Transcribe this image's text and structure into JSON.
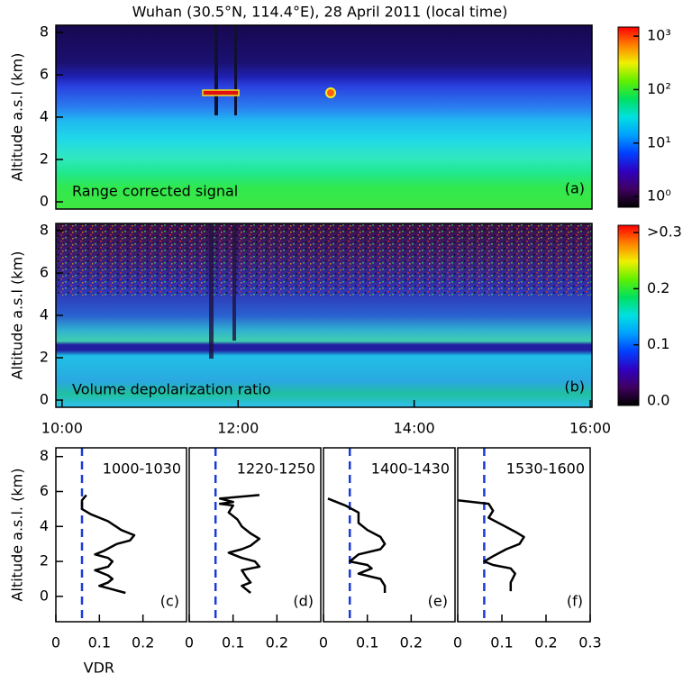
{
  "chart_data": [
    {
      "type": "heatmap",
      "title": "Wuhan (30.5°N, 114.4°E), 28 April 2011 (local time)",
      "ylabel": "Altitude a.s.l (km)",
      "annotation": "Range corrected signal",
      "panel_label": "(a)",
      "xlim": [
        9.93,
        16.02
      ],
      "ylim": [
        -0.34,
        8.34
      ],
      "yticks": [
        0,
        2,
        4,
        6,
        8
      ],
      "colorbar": {
        "scale": "log",
        "lim": [
          0.63,
          1480
        ],
        "ticks": [
          {
            "value": 1,
            "label": "10⁰"
          },
          {
            "value": 10,
            "label": "10¹"
          },
          {
            "value": 100,
            "label": "10²"
          },
          {
            "value": 1000,
            "label": "10³"
          }
        ]
      }
    },
    {
      "type": "heatmap",
      "ylabel": "Altitude a.s.l (km)",
      "annotation": "Volume depolarization ratio",
      "panel_label": "(b)",
      "xlim": [
        9.93,
        16.02
      ],
      "ylim": [
        -0.34,
        8.34
      ],
      "yticks": [
        0,
        2,
        4,
        6,
        8
      ],
      "xticks": [
        {
          "value": 10,
          "label": "10:00"
        },
        {
          "value": 12,
          "label": "12:00"
        },
        {
          "value": 14,
          "label": "14:00"
        },
        {
          "value": 16,
          "label": "16:00"
        }
      ],
      "colorbar": {
        "scale": "linear",
        "lim": [
          -0.008,
          0.313
        ],
        "ticks": [
          {
            "value": 0,
            "label": "0.0"
          },
          0.1,
          0.2,
          {
            "value": 0.3,
            "label": ">0.3"
          }
        ]
      }
    },
    {
      "type": "line",
      "title": "1000-1030",
      "panel_label": "(c)",
      "xlabel": "VDR",
      "ylabel": "Altitude a.s.l. (km)",
      "xlim": [
        0,
        0.3
      ],
      "ylim": [
        -1.45,
        8.5
      ],
      "xticks": [
        0,
        0.1,
        0.2
      ],
      "yticks": [
        0,
        2,
        4,
        6,
        8
      ],
      "reference_x": 0.06,
      "reference_color": "#1a3ad8",
      "color": "#000000",
      "x": [
        0.07,
        0.06,
        0.06,
        0.08,
        0.12,
        0.15,
        0.18,
        0.17,
        0.14,
        0.11,
        0.09,
        0.12,
        0.13,
        0.12,
        0.09,
        0.12,
        0.13,
        0.12,
        0.1,
        0.13,
        0.16
      ],
      "values": [
        5.8,
        5.5,
        5.0,
        4.7,
        4.3,
        3.8,
        3.5,
        3.2,
        3.0,
        2.6,
        2.4,
        2.2,
        2.0,
        1.7,
        1.5,
        1.2,
        1.0,
        0.8,
        0.6,
        0.4,
        0.2
      ]
    },
    {
      "type": "line",
      "title": "1220-1250",
      "panel_label": "(d)",
      "xlim": [
        0,
        0.3
      ],
      "ylim": [
        -1.45,
        8.5
      ],
      "xticks": [
        0,
        0.1,
        0.2
      ],
      "reference_x": 0.06,
      "reference_color": "#1a3ad8",
      "color": "#000000",
      "x": [
        0.16,
        0.07,
        0.1,
        0.07,
        0.1,
        0.09,
        0.11,
        0.12,
        0.14,
        0.16,
        0.14,
        0.12,
        0.09,
        0.12,
        0.15,
        0.16,
        0.12,
        0.13,
        0.14,
        0.12,
        0.14
      ],
      "values": [
        5.8,
        5.6,
        5.4,
        5.3,
        5.2,
        4.8,
        4.4,
        4.0,
        3.6,
        3.3,
        2.9,
        2.7,
        2.5,
        2.2,
        2.0,
        1.7,
        1.5,
        1.1,
        0.8,
        0.6,
        0.2
      ]
    },
    {
      "type": "line",
      "title": "1400-1430",
      "panel_label": "(e)",
      "xlim": [
        0,
        0.3
      ],
      "ylim": [
        -1.45,
        8.5
      ],
      "xticks": [
        0,
        0.1,
        0.2
      ],
      "reference_x": 0.06,
      "reference_color": "#1a3ad8",
      "color": "#000000",
      "x": [
        0.01,
        0.05,
        0.08,
        0.08,
        0.1,
        0.13,
        0.14,
        0.13,
        0.08,
        0.06,
        0.1,
        0.11,
        0.08,
        0.13,
        0.14,
        0.14
      ],
      "values": [
        5.6,
        5.2,
        4.8,
        4.2,
        3.8,
        3.4,
        3.0,
        2.7,
        2.4,
        2.0,
        1.8,
        1.6,
        1.3,
        1.0,
        0.6,
        0.2
      ]
    },
    {
      "type": "line",
      "title": "1530-1600",
      "panel_label": "(f)",
      "xlim": [
        0,
        0.3
      ],
      "ylim": [
        -1.45,
        8.5
      ],
      "xticks": [
        0,
        0.1,
        0.2,
        0.3
      ],
      "reference_x": 0.06,
      "reference_color": "#1a3ad8",
      "color": "#000000",
      "x": [
        0.0,
        0.07,
        0.08,
        0.07,
        0.1,
        0.13,
        0.15,
        0.14,
        0.11,
        0.08,
        0.06,
        0.08,
        0.12,
        0.13,
        0.12,
        0.12
      ],
      "values": [
        5.5,
        5.3,
        4.9,
        4.5,
        4.1,
        3.7,
        3.4,
        3.0,
        2.7,
        2.3,
        2.0,
        1.8,
        1.6,
        1.3,
        0.8,
        0.3
      ]
    }
  ]
}
